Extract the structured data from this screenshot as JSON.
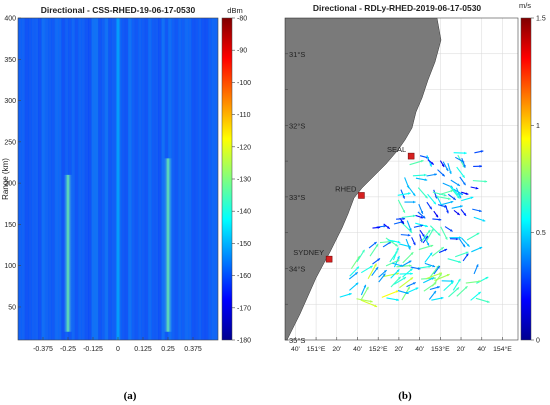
{
  "chart_data": [
    {
      "type": "heatmap",
      "title": "Directional - CSS-RHED-19-06-17-0530",
      "ylabel": "Range (km)",
      "xlabel": "",
      "xlim": [
        -0.5,
        0.5
      ],
      "ylim": [
        10,
        400
      ],
      "x_ticks": [
        -0.375,
        -0.25,
        -0.125,
        0,
        0.125,
        0.25,
        0.375
      ],
      "x_tick_labels": [
        "-0.375",
        "-0.25",
        "-0.125",
        "0",
        "0.125",
        "0.25",
        "0.375"
      ],
      "y_ticks": [
        50,
        100,
        150,
        200,
        250,
        300,
        350,
        400
      ],
      "colorbar": {
        "label": "dBm",
        "min": -180,
        "max": -80,
        "ticks": [
          -80,
          -90,
          -100,
          -110,
          -120,
          -130,
          -140,
          -150,
          -160,
          -170,
          -180
        ]
      },
      "peaks": [
        {
          "x": -0.25,
          "range_from": 20,
          "range_to": 210,
          "level_dBm": -132
        },
        {
          "x": 0.25,
          "range_from": 20,
          "range_to": 230,
          "level_dBm": -135
        },
        {
          "x": 0.0,
          "range_from": 10,
          "range_to": 400,
          "level_dBm": -150
        }
      ],
      "background_dBm": -158,
      "caption": "(a)"
    },
    {
      "type": "scatter",
      "title": "Directional - RDLy-RHED-2019-06-17-0530",
      "xlim": [
        150.5,
        154.25
      ],
      "ylim": [
        -35,
        -30.5
      ],
      "lat_ticks": [
        -31,
        -31.5,
        -32,
        -32.5,
        -33,
        -33.5,
        -34,
        -34.5,
        -35
      ],
      "lat_labels": [
        "31°S",
        "",
        "32°S",
        "",
        "33°S",
        "",
        "34°S",
        "",
        "35°S"
      ],
      "lon_ticks": [
        150.667,
        151,
        151.333,
        151.667,
        152,
        152.333,
        152.667,
        153,
        153.333,
        153.667,
        154
      ],
      "lon_labels": [
        "40'",
        "151°E",
        "20'",
        "40'",
        "152°E",
        "20'",
        "40'",
        "153°E",
        "20'",
        "40'",
        "154°E"
      ],
      "colorbar": {
        "label": "m/s",
        "min": 0,
        "max": 1.5,
        "ticks": [
          0,
          0.5,
          1,
          1.5
        ],
        "tick_labels": [
          "0",
          "0.5",
          "1",
          "1.5"
        ]
      },
      "stations": [
        {
          "name": "SEAL",
          "lon": 152.53,
          "lat": -32.43
        },
        {
          "name": "RHED",
          "lon": 151.73,
          "lat": -32.98
        },
        {
          "name": "SYDNEY",
          "lon": 151.21,
          "lat": -33.87
        }
      ],
      "caption": "(b)"
    }
  ]
}
